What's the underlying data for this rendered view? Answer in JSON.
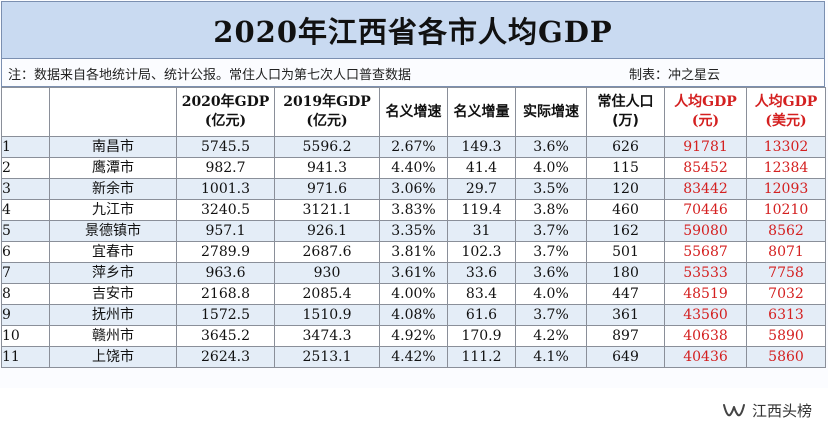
{
  "title": "2020年江西省各市人均GDP",
  "note": "注：数据来自各地统计局、统计公报。常住人口为第七次人口普查数据",
  "maker": "制表：冲之星云",
  "headers": {
    "gdp2020": [
      "2020年GDP",
      "(亿元)"
    ],
    "gdp2019": [
      "2019年GDP",
      "(亿元)"
    ],
    "nominal_growth": "名义增速",
    "nominal_increase": "名义增量",
    "real_growth": "实际增速",
    "population": [
      "常住人口",
      "(万)"
    ],
    "pc_gdp_yuan": [
      "人均GDP",
      "(元)"
    ],
    "pc_gdp_usd": [
      "人均GDP",
      "(美元)"
    ]
  },
  "rows": [
    {
      "rank": "1",
      "city": "南昌市",
      "gdp2020": "5745.5",
      "gdp2019": "5596.2",
      "nominal_growth": "2.67%",
      "nominal_increase": "149.3",
      "real_growth": "3.6%",
      "population": "626",
      "pc_gdp_yuan": "91781",
      "pc_gdp_usd": "13302"
    },
    {
      "rank": "2",
      "city": "鹰潭市",
      "gdp2020": "982.7",
      "gdp2019": "941.3",
      "nominal_growth": "4.40%",
      "nominal_increase": "41.4",
      "real_growth": "4.0%",
      "population": "115",
      "pc_gdp_yuan": "85452",
      "pc_gdp_usd": "12384"
    },
    {
      "rank": "3",
      "city": "新余市",
      "gdp2020": "1001.3",
      "gdp2019": "971.6",
      "nominal_growth": "3.06%",
      "nominal_increase": "29.7",
      "real_growth": "3.5%",
      "population": "120",
      "pc_gdp_yuan": "83442",
      "pc_gdp_usd": "12093"
    },
    {
      "rank": "4",
      "city": "九江市",
      "gdp2020": "3240.5",
      "gdp2019": "3121.1",
      "nominal_growth": "3.83%",
      "nominal_increase": "119.4",
      "real_growth": "3.8%",
      "population": "460",
      "pc_gdp_yuan": "70446",
      "pc_gdp_usd": "10210"
    },
    {
      "rank": "5",
      "city": "景德镇市",
      "gdp2020": "957.1",
      "gdp2019": "926.1",
      "nominal_growth": "3.35%",
      "nominal_increase": "31",
      "real_growth": "3.7%",
      "population": "162",
      "pc_gdp_yuan": "59080",
      "pc_gdp_usd": "8562"
    },
    {
      "rank": "6",
      "city": "宜春市",
      "gdp2020": "2789.9",
      "gdp2019": "2687.6",
      "nominal_growth": "3.81%",
      "nominal_increase": "102.3",
      "real_growth": "3.7%",
      "population": "501",
      "pc_gdp_yuan": "55687",
      "pc_gdp_usd": "8071"
    },
    {
      "rank": "7",
      "city": "萍乡市",
      "gdp2020": "963.6",
      "gdp2019": "930",
      "nominal_growth": "3.61%",
      "nominal_increase": "33.6",
      "real_growth": "3.6%",
      "population": "180",
      "pc_gdp_yuan": "53533",
      "pc_gdp_usd": "7758"
    },
    {
      "rank": "8",
      "city": "吉安市",
      "gdp2020": "2168.8",
      "gdp2019": "2085.4",
      "nominal_growth": "4.00%",
      "nominal_increase": "83.4",
      "real_growth": "4.0%",
      "population": "447",
      "pc_gdp_yuan": "48519",
      "pc_gdp_usd": "7032"
    },
    {
      "rank": "9",
      "city": "抚州市",
      "gdp2020": "1572.5",
      "gdp2019": "1510.9",
      "nominal_growth": "4.08%",
      "nominal_increase": "61.6",
      "real_growth": "3.7%",
      "population": "361",
      "pc_gdp_yuan": "43560",
      "pc_gdp_usd": "6313"
    },
    {
      "rank": "10",
      "city": "赣州市",
      "gdp2020": "3645.2",
      "gdp2019": "3474.3",
      "nominal_growth": "4.92%",
      "nominal_increase": "170.9",
      "real_growth": "4.2%",
      "population": "897",
      "pc_gdp_yuan": "40638",
      "pc_gdp_usd": "5890"
    },
    {
      "rank": "11",
      "city": "上饶市",
      "gdp2020": "2624.3",
      "gdp2019": "2513.1",
      "nominal_growth": "4.42%",
      "nominal_increase": "111.2",
      "real_growth": "4.1%",
      "population": "649",
      "pc_gdp_yuan": "40436",
      "pc_gdp_usd": "5860"
    }
  ],
  "watermark": {
    "icon": "wechat-channel-icon",
    "text": "江西头榜"
  },
  "colors": {
    "title_bg": "#c9daf1",
    "highlight_red": "#d42020",
    "stripe": "#e4edf7"
  }
}
